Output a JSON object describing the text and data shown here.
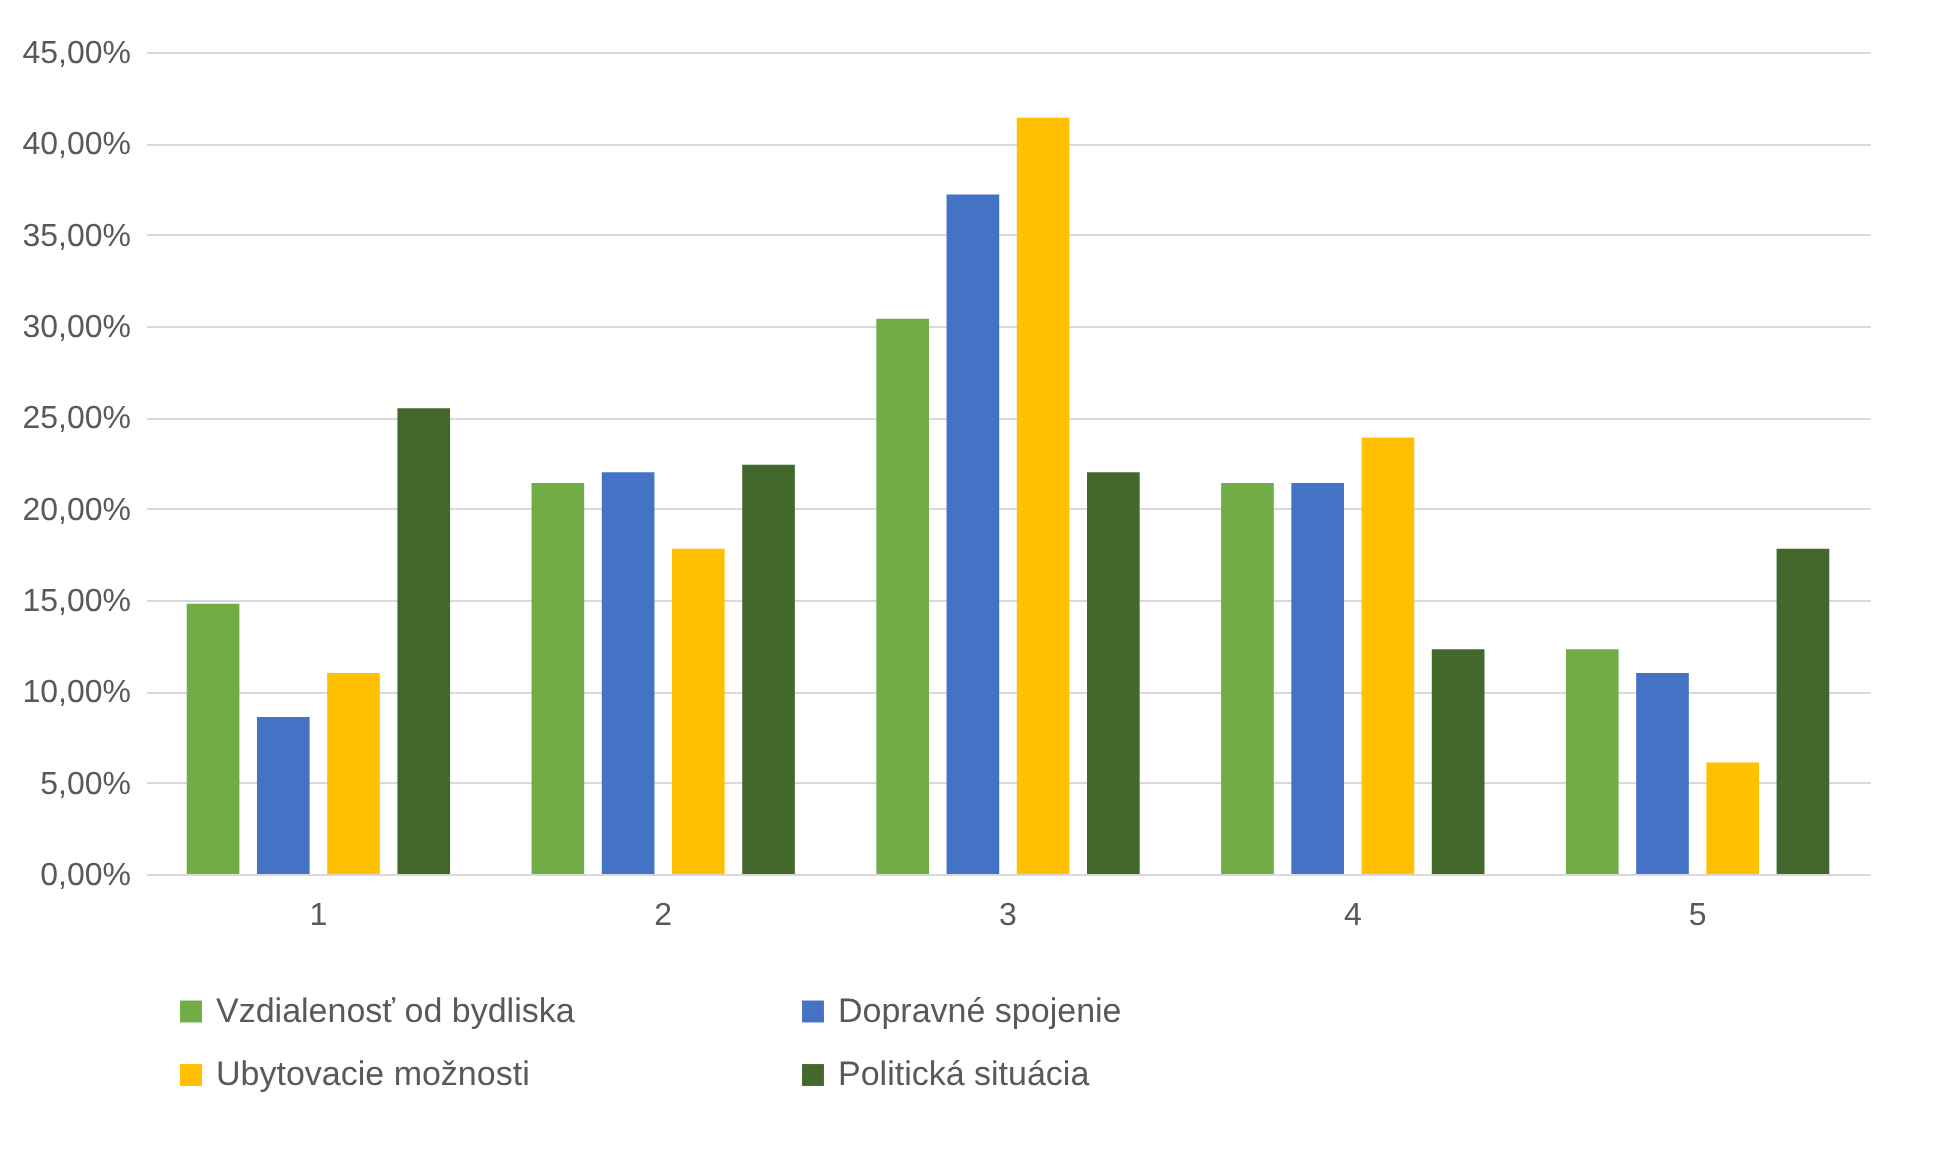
{
  "chart_data": {
    "type": "bar",
    "categories": [
      "1",
      "2",
      "3",
      "4",
      "5"
    ],
    "series": [
      {
        "name": "Vzdialenosť od bydliska",
        "color": "#70ad47",
        "values": [
          14.8,
          21.4,
          30.4,
          21.4,
          12.3
        ]
      },
      {
        "name": "Dopravné spojenie",
        "color": "#4472c4",
        "values": [
          8.6,
          22.0,
          37.2,
          21.4,
          11.0
        ]
      },
      {
        "name": "Ubytovacie možnosti",
        "color": "#ffc000",
        "values": [
          11.0,
          17.8,
          41.4,
          23.9,
          6.1
        ]
      },
      {
        "name": "Politická situácia",
        "color": "#43682b",
        "values": [
          25.5,
          22.4,
          22.0,
          12.3,
          17.8
        ]
      }
    ],
    "ylim": [
      0,
      45
    ],
    "yticks": [
      {
        "value": 0,
        "label": "0,00%"
      },
      {
        "value": 5,
        "label": "5,00%"
      },
      {
        "value": 10,
        "label": "10,00%"
      },
      {
        "value": 15,
        "label": "15,00%"
      },
      {
        "value": 20,
        "label": "20,00%"
      },
      {
        "value": 25,
        "label": "25,00%"
      },
      {
        "value": 30,
        "label": "30,00%"
      },
      {
        "value": 35,
        "label": "35,00%"
      },
      {
        "value": 40,
        "label": "40,00%"
      },
      {
        "value": 45,
        "label": "45,00%"
      }
    ],
    "grid": "y",
    "legend": "bottom"
  }
}
